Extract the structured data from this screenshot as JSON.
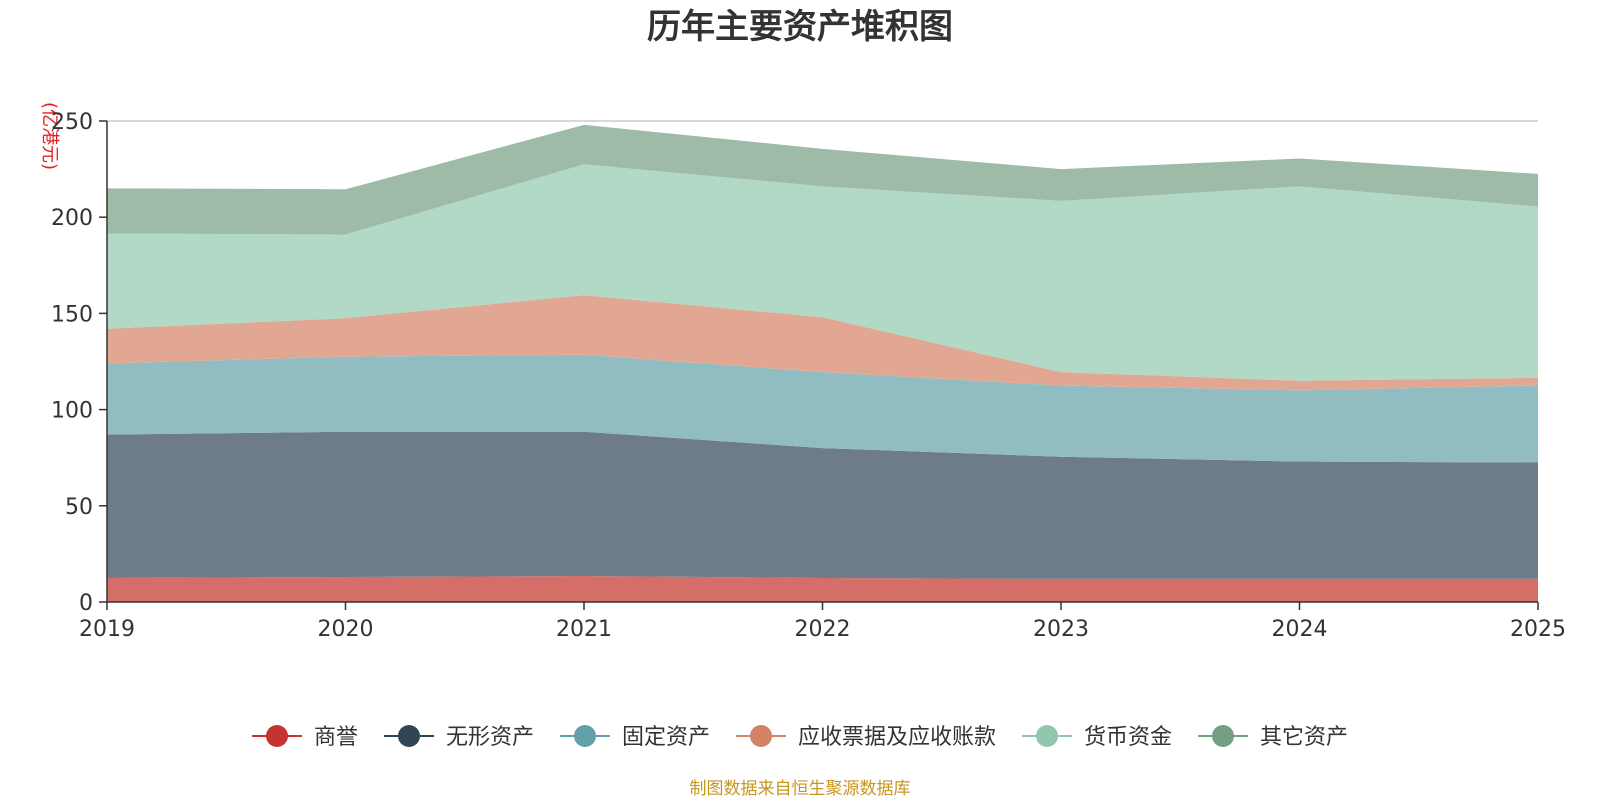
{
  "chart_data": {
    "type": "area",
    "stacked": true,
    "title": "历年主要资产堆积图",
    "ylabel": "(亿港元)",
    "xlabel": "",
    "x": [
      "2019",
      "2020",
      "2021",
      "2022",
      "2023",
      "2024",
      "2025"
    ],
    "ylim": [
      0,
      250
    ],
    "yticks": [
      0,
      50,
      100,
      150,
      200,
      250
    ],
    "series": [
      {
        "name": "商誉",
        "color": "#c23531",
        "area_color": "#d56d69",
        "values": [
          12.5,
          13,
          13.5,
          12.5,
          12,
          12,
          12
        ]
      },
      {
        "name": "无形资产",
        "color": "#2f4554",
        "area_color": "#6e7c87",
        "values": [
          74.5,
          75.5,
          75,
          67.5,
          63.5,
          61,
          60.5
        ]
      },
      {
        "name": "固定资产",
        "color": "#61a0a8",
        "area_color": "#90bcc2",
        "values": [
          37,
          39,
          40,
          39.5,
          37,
          37,
          40
        ]
      },
      {
        "name": "应收票据及应收账款",
        "color": "#d48265",
        "area_color": "#e2a792",
        "values": [
          18,
          20,
          31,
          28.5,
          7,
          5,
          4
        ]
      },
      {
        "name": "货币资金",
        "color": "#91c7ae",
        "area_color": "#b2d8c6",
        "values": [
          49.5,
          43.5,
          68,
          68,
          89,
          101,
          89
        ]
      },
      {
        "name": "其它资产",
        "color": "#749f83",
        "area_color": "#9dbba7",
        "values": [
          23.5,
          23.5,
          20.5,
          19.5,
          16.5,
          14.5,
          17
        ]
      }
    ],
    "legend_position": "bottom-center",
    "grid": true,
    "source": "制图数据来自恒生聚源数据库"
  }
}
